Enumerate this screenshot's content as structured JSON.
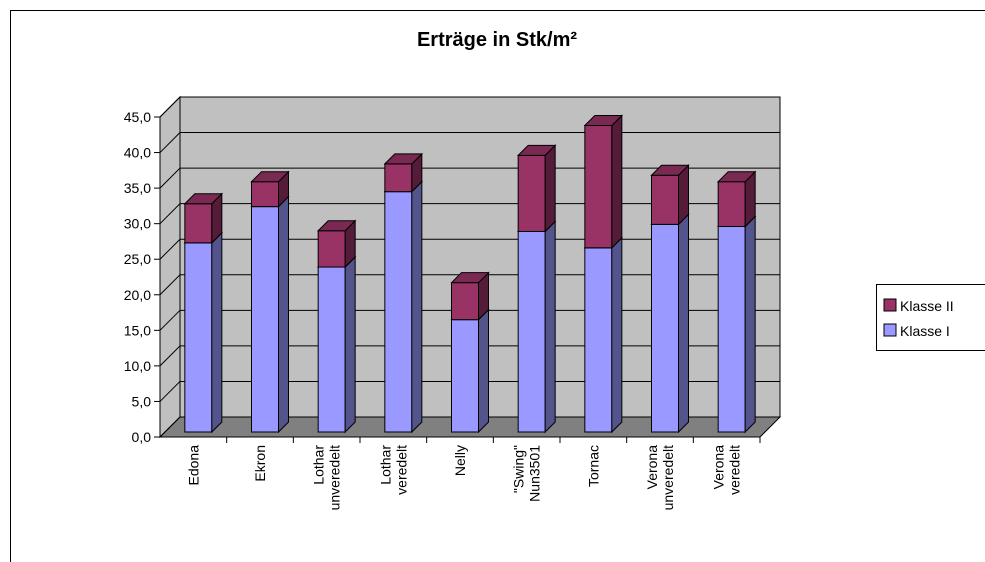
{
  "chart_data": {
    "type": "bar3d_stacked",
    "title": "Erträge in Stk/m²",
    "categories": [
      "Edona",
      "Ekron",
      "Lothar unveredelt",
      "Lothar veredelt",
      "Nelly",
      "\"Swing\" Nun3501",
      "Tornac",
      "Verona unveredelt",
      "Verona veredelt"
    ],
    "series": [
      {
        "name": "Klasse I",
        "color": "#9999ff",
        "values": [
          26.6,
          31.7,
          23.2,
          33.8,
          15.8,
          28.2,
          25.9,
          29.2,
          28.9
        ]
      },
      {
        "name": "Klasse II",
        "color": "#993366",
        "values": [
          5.5,
          3.5,
          5.1,
          3.9,
          5.2,
          10.7,
          17.2,
          6.9,
          6.3
        ]
      }
    ],
    "ylim": [
      0,
      45
    ],
    "yticks": [
      {
        "value": 0,
        "label": "0,0"
      },
      {
        "value": 5,
        "label": "5,0"
      },
      {
        "value": 10,
        "label": "10,0"
      },
      {
        "value": 15,
        "label": "15,0"
      },
      {
        "value": 20,
        "label": "20,0"
      },
      {
        "value": 25,
        "label": "25,0"
      },
      {
        "value": 30,
        "label": "30,0"
      },
      {
        "value": 35,
        "label": "35,0"
      },
      {
        "value": 40,
        "label": "40,0"
      },
      {
        "value": 45,
        "label": "45,0"
      }
    ],
    "grid": true,
    "legend": "right"
  }
}
